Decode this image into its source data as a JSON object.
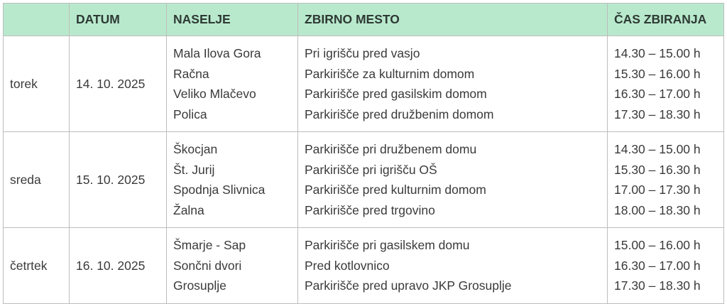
{
  "table": {
    "headers": [
      "",
      "DATUM",
      "NASELJE",
      "ZBIRNO MESTO",
      "ČAS ZBIRANJA"
    ],
    "header_bg": "#b9e9cd",
    "rows": [
      {
        "day": "torek",
        "date": "14. 10. 2025",
        "entries": [
          {
            "settlement": "Mala Ilova Gora",
            "place": "Pri igrišču pred vasjo",
            "time": "14.30 – 15.00 h"
          },
          {
            "settlement": "Račna",
            "place": "Parkirišče za kulturnim domom",
            "time": "15.30 – 16.00 h"
          },
          {
            "settlement": "Veliko Mlačevo",
            "place": "Parkirišče pred gasilskim domom",
            "time": "16.30 – 17.00 h"
          },
          {
            "settlement": "Polica",
            "place": "Parkirišče pred družbenim domom",
            "time": "17.30 – 18.30 h"
          }
        ]
      },
      {
        "day": "sreda",
        "date": "15. 10. 2025",
        "entries": [
          {
            "settlement": "Škocjan",
            "place": "Parkirišče pri družbenem domu",
            "time": "14.30 – 15.00 h"
          },
          {
            "settlement": "Št. Jurij",
            "place": "Parkirišče pri igrišču OŠ",
            "time": "15.30 – 16.30 h"
          },
          {
            "settlement": "Spodnja Slivnica",
            "place": "Parkirišče pred kulturnim domom",
            "time": "17.00 – 17.30 h"
          },
          {
            "settlement": "Žalna",
            "place": "Parkirišče pred trgovino",
            "time": "18.00 – 18.30 h"
          }
        ]
      },
      {
        "day": "četrtek",
        "date": "16. 10. 2025",
        "entries": [
          {
            "settlement": "Šmarje - Sap",
            "place": "Parkirišče pri gasilskem domu",
            "time": "15.00 – 16.00 h"
          },
          {
            "settlement": "Sončni dvori",
            "place": "Pred kotlovnico",
            "time": "16.30 – 17.00 h"
          },
          {
            "settlement": "Grosuplje",
            "place": "Parkirišče pred upravo JKP Grosuplje",
            "time": "17.30 – 18.30 h"
          }
        ]
      }
    ]
  }
}
